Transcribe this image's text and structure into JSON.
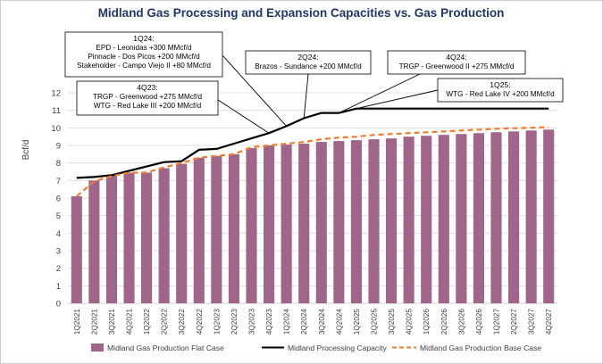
{
  "chart_data": {
    "type": "bar",
    "title": "Midland Gas Processing and Expansion Capacities vs. Gas Production",
    "ylabel": "Bcf/d",
    "xlabel": "",
    "ylim": [
      0,
      12
    ],
    "yticks": [
      0,
      1,
      2,
      3,
      4,
      5,
      6,
      7,
      8,
      9,
      10,
      11,
      12
    ],
    "grid": true,
    "legend_position": "bottom",
    "categories": [
      "1Q2021",
      "2Q2021",
      "3Q2021",
      "4Q2021",
      "1Q2022",
      "2Q2022",
      "3Q2022",
      "4Q2022",
      "1Q2023",
      "2Q2023",
      "3Q2023",
      "4Q2023",
      "1Q2024",
      "2Q2024",
      "3Q2024",
      "4Q2024",
      "1Q2025",
      "2Q2025",
      "3Q2025",
      "4Q2025",
      "1Q2026",
      "2Q2026",
      "3Q2026",
      "4Q2026",
      "1Q2027",
      "2Q2027",
      "3Q2027",
      "4Q2027"
    ],
    "series": [
      {
        "name": "Midland Gas Production Flat Case",
        "kind": "bar",
        "color": "#a0668a",
        "values": [
          6.1,
          7.0,
          7.3,
          7.45,
          7.45,
          7.7,
          7.95,
          8.3,
          8.4,
          8.5,
          8.85,
          9.0,
          9.05,
          9.1,
          9.2,
          9.25,
          9.3,
          9.35,
          9.4,
          9.5,
          9.55,
          9.6,
          9.65,
          9.7,
          9.75,
          9.8,
          9.85,
          9.9
        ]
      },
      {
        "name": "Midland Processing Capacity",
        "kind": "line",
        "color": "#000000",
        "x": [
          "1Q2021",
          "2Q2021",
          "3Q2021",
          "4Q2021",
          "1Q2022",
          "2Q2022",
          "3Q2022",
          "4Q2022",
          "1Q2023",
          "2Q2023",
          "3Q2023",
          "4Q2023",
          "1Q2024",
          "2Q2024",
          "3Q2024",
          "4Q2024",
          "1Q2025",
          "2Q2025",
          "3Q2025",
          "4Q2025",
          "1Q2026",
          "2Q2026",
          "3Q2026",
          "4Q2026",
          "1Q2027",
          "2Q2027",
          "3Q2027",
          "4Q2027"
        ],
        "values": [
          7.15,
          7.2,
          7.3,
          7.55,
          7.8,
          8.05,
          8.1,
          8.75,
          8.8,
          9.1,
          9.4,
          9.7,
          10.1,
          10.55,
          10.85,
          10.85,
          11.1,
          11.1,
          11.1,
          11.1,
          11.1,
          11.1,
          11.1,
          11.1,
          11.1,
          11.1,
          11.1,
          11.1
        ]
      },
      {
        "name": "Midland Gas Production Base Case",
        "kind": "dashed-line",
        "color": "#ed7d31",
        "values": [
          6.1,
          6.95,
          7.25,
          7.45,
          7.45,
          7.75,
          8.0,
          8.3,
          8.4,
          8.5,
          8.9,
          9.0,
          9.1,
          9.2,
          9.35,
          9.45,
          9.5,
          9.6,
          9.65,
          9.7,
          9.75,
          9.8,
          9.85,
          9.9,
          9.95,
          9.98,
          10.0,
          10.05
        ]
      }
    ],
    "annotations": [
      {
        "id": "1q24",
        "title": "1Q24:",
        "lines": [
          "EPD - Leonidas  +300 MMcf/d",
          "Pinnacle - Dos Picos  +200 MMcf/d",
          "Stakeholder - Campo Viejo II  +80 MMcf/d"
        ],
        "points_to": "1Q2024"
      },
      {
        "id": "2q24",
        "title": "2Q24:",
        "lines": [
          "Brazos - Sundance +200 MMcf/d"
        ],
        "points_to": "2Q2024"
      },
      {
        "id": "4q24",
        "title": "4Q24:",
        "lines": [
          "TRGP - Greenwood II  +275 MMcf/d"
        ],
        "points_to": "4Q2024"
      },
      {
        "id": "4q23",
        "title": "4Q23:",
        "lines": [
          "TRGP - Greenwood  +275 MMcf/d",
          "WTG - Red Lake III  +200 MMcf/d"
        ],
        "points_to": "4Q2023"
      },
      {
        "id": "1q25",
        "title": "1Q25:",
        "lines": [
          "WTG - Red Lake IV  +200 MMcf/d"
        ],
        "points_to": "1Q2025"
      }
    ]
  }
}
